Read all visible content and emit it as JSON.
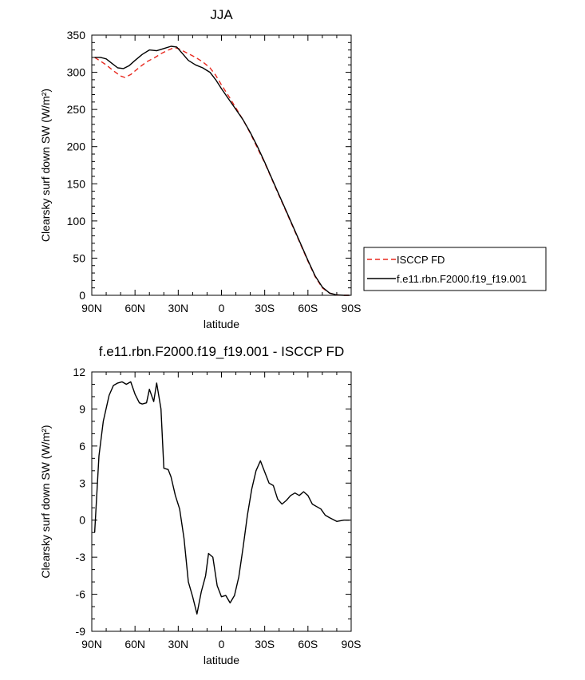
{
  "chart_data": [
    {
      "type": "line",
      "title": "JJA",
      "xlabel": "latitude",
      "ylabel": "Clearsky surf down SW (W/m²)",
      "xlim": [
        90,
        -90
      ],
      "xticks": [
        90,
        60,
        30,
        0,
        -30,
        -60,
        -90
      ],
      "xtick_labels": [
        "90N",
        "60N",
        "30N",
        "0",
        "30S",
        "60S",
        "90S"
      ],
      "ylim": [
        0,
        350
      ],
      "yticks": [
        0,
        50,
        100,
        150,
        200,
        250,
        300,
        350
      ],
      "ytick_labels": [
        "0",
        "50",
        "100",
        "150",
        "200",
        "250",
        "300",
        "350"
      ],
      "legend": "right",
      "series": [
        {
          "name": "ISCCP FD",
          "color": "#e8291f",
          "dash": "dashed",
          "x": [
            88,
            80,
            75,
            70,
            67,
            63,
            58,
            52,
            46,
            42,
            38,
            33,
            30,
            26,
            22,
            18,
            13,
            8,
            4,
            0,
            -5,
            -10,
            -15,
            -20,
            -25,
            -30,
            -35,
            -40,
            -45,
            -50,
            -55,
            -60,
            -65,
            -70,
            -75,
            -80,
            -85,
            -89
          ],
          "values": [
            320,
            310,
            302,
            295,
            293,
            297,
            305,
            314,
            320,
            325,
            329,
            333,
            332,
            328,
            324,
            320,
            314,
            306,
            296,
            283,
            268,
            252,
            236,
            218,
            198,
            178,
            156,
            134,
            112,
            90,
            68,
            46,
            25,
            10,
            3,
            0.5,
            0,
            0
          ]
        },
        {
          "name": "f.e11.rbn.F2000.f19_f19.001",
          "color": "#000000",
          "dash": "solid",
          "x": [
            88,
            84,
            80,
            76,
            72,
            68,
            64,
            60,
            55,
            50,
            45,
            40,
            35,
            31,
            27,
            23,
            18,
            13,
            8,
            4,
            0,
            -5,
            -10,
            -15,
            -20,
            -25,
            -30,
            -35,
            -40,
            -45,
            -50,
            -55,
            -60,
            -65,
            -70,
            -75,
            -80,
            -85,
            -89
          ],
          "values": [
            320,
            320,
            318,
            312,
            306,
            305,
            309,
            316,
            324,
            330,
            329,
            332,
            335,
            334,
            325,
            316,
            310,
            306,
            300,
            290,
            278,
            264,
            250,
            236,
            219,
            200,
            179,
            157,
            135,
            113,
            91,
            69,
            47,
            26,
            11,
            3,
            0.5,
            0,
            0
          ]
        }
      ]
    },
    {
      "type": "line",
      "title": "f.e11.rbn.F2000.f19_f19.001 - ISCCP FD",
      "xlabel": "latitude",
      "ylabel": "Clearsky surf down SW (W/m²)",
      "xlim": [
        90,
        -90
      ],
      "xticks": [
        90,
        60,
        30,
        0,
        -30,
        -60,
        -90
      ],
      "xtick_labels": [
        "90N",
        "60N",
        "30N",
        "0",
        "30S",
        "60S",
        "90S"
      ],
      "ylim": [
        -9,
        12
      ],
      "yticks": [
        -9,
        -6,
        -3,
        0,
        3,
        6,
        9,
        12
      ],
      "ytick_labels": [
        "-9",
        "-6",
        "-3",
        "0",
        "3",
        "6",
        "9",
        "12"
      ],
      "series": [
        {
          "color": "#000000",
          "dash": "solid",
          "x": [
            88,
            85,
            82,
            78,
            75,
            72,
            69,
            66,
            63,
            60,
            57,
            55,
            52,
            50,
            47,
            45,
            42,
            40,
            37,
            35,
            32,
            29,
            26,
            23,
            20,
            17,
            14,
            11,
            9,
            6,
            3,
            0,
            -3,
            -6,
            -9,
            -12,
            -15,
            -18,
            -21,
            -24,
            -27,
            -30,
            -33,
            -36,
            -39,
            -42,
            -45,
            -48,
            -51,
            -54,
            -57,
            -60,
            -63,
            -66,
            -69,
            -72,
            -75,
            -80,
            -85,
            -89
          ],
          "values": [
            -1.0,
            5.2,
            8.0,
            10.1,
            10.9,
            11.1,
            11.2,
            11.0,
            11.2,
            10.2,
            9.5,
            9.4,
            9.5,
            10.6,
            9.6,
            11.1,
            9.0,
            4.2,
            4.1,
            3.5,
            2.0,
            0.9,
            -1.5,
            -5.0,
            -6.2,
            -7.6,
            -5.8,
            -4.5,
            -2.7,
            -3.0,
            -5.3,
            -6.2,
            -6.1,
            -6.7,
            -6.1,
            -4.6,
            -2.2,
            0.4,
            2.5,
            4.0,
            4.8,
            3.9,
            3.0,
            2.8,
            1.7,
            1.3,
            1.6,
            2.0,
            2.2,
            2.0,
            2.3,
            2.0,
            1.3,
            1.1,
            0.9,
            0.4,
            0.2,
            -0.1,
            0.0,
            0.0
          ]
        }
      ]
    }
  ]
}
